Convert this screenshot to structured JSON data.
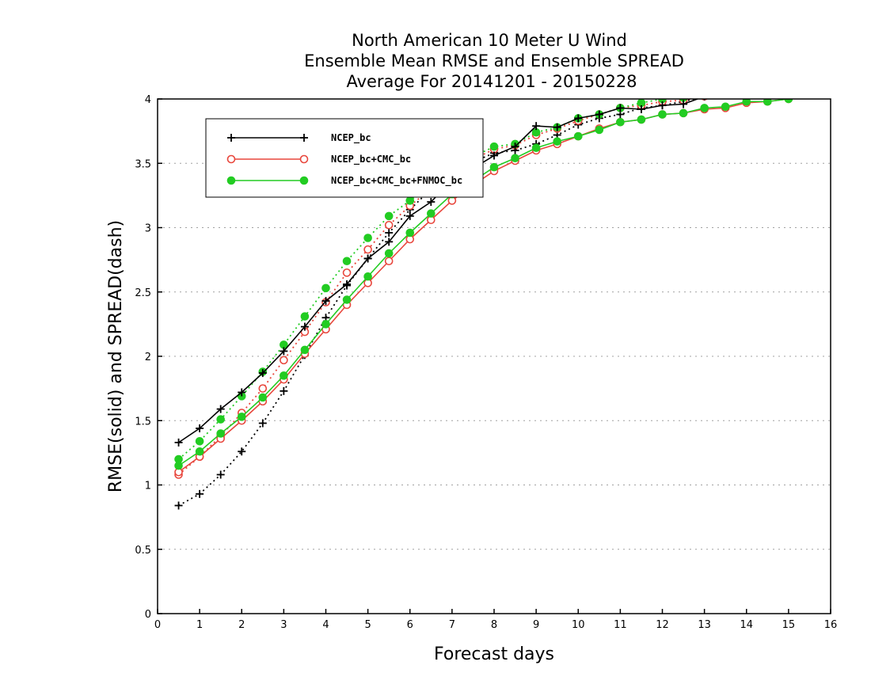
{
  "chart_data": {
    "type": "line",
    "title": [
      "North American 10 Meter U Wind",
      "Ensemble Mean RMSE and Ensemble SPREAD",
      "Average For 20141201 - 20150228"
    ],
    "xlabel": "Forecast days",
    "ylabel": "RMSE(solid) and SPREAD(dash)",
    "xlim": [
      0,
      16
    ],
    "ylim": [
      0,
      4
    ],
    "xticks": [
      "0",
      "1",
      "2",
      "3",
      "4",
      "5",
      "6",
      "7",
      "8",
      "9",
      "10",
      "11",
      "12",
      "13",
      "14",
      "15",
      "16"
    ],
    "yticks": [
      "0",
      "0.5",
      "1",
      "1.5",
      "2",
      "2.5",
      "3",
      "3.5",
      "4"
    ],
    "grid": "horizontal dotted",
    "legend_position": "top-left",
    "series": [
      {
        "name": "NCEP_bc",
        "metric": "RMSE",
        "line_style": "solid",
        "color": "#000000",
        "marker": "plus",
        "x": [
          0.5,
          1,
          1.5,
          2,
          2.5,
          3,
          3.5,
          4,
          4.5,
          5,
          5.5,
          6,
          6.5,
          7,
          7.5,
          8,
          8.5,
          9,
          9.5,
          10,
          10.5,
          11,
          11.5,
          12,
          12.5,
          13,
          13.5,
          14,
          14.5,
          15
        ],
        "y": [
          1.33,
          1.44,
          1.59,
          1.72,
          1.87,
          2.04,
          2.23,
          2.43,
          2.56,
          2.76,
          2.89,
          3.09,
          3.2,
          3.37,
          3.46,
          3.56,
          3.63,
          3.79,
          3.78,
          3.85,
          3.88,
          3.93,
          3.92,
          3.95,
          3.96,
          4.02,
          4.03,
          4.06,
          4.07,
          4.1
        ]
      },
      {
        "name": "NCEP_bc+CMC_bc",
        "metric": "RMSE",
        "line_style": "solid",
        "color": "#e8463c",
        "marker": "open-circle",
        "x": [
          0.5,
          1,
          1.5,
          2,
          2.5,
          3,
          3.5,
          4,
          4.5,
          5,
          5.5,
          6,
          6.5,
          7,
          7.5,
          8,
          8.5,
          9,
          9.5,
          10,
          10.5,
          11,
          11.5,
          12,
          12.5,
          13,
          13.5,
          14,
          14.5,
          15
        ],
        "y": [
          1.1,
          1.22,
          1.36,
          1.5,
          1.65,
          1.82,
          2.02,
          2.21,
          2.4,
          2.57,
          2.74,
          2.91,
          3.06,
          3.21,
          3.33,
          3.44,
          3.52,
          3.6,
          3.65,
          3.71,
          3.77,
          3.82,
          3.84,
          3.88,
          3.89,
          3.92,
          3.93,
          3.97,
          3.98,
          4.0
        ]
      },
      {
        "name": "NCEP_bc+CMC_bc+FNMOC_bc",
        "metric": "RMSE",
        "line_style": "solid",
        "color": "#22cc22",
        "marker": "filled-circle",
        "x": [
          0.5,
          1,
          1.5,
          2,
          2.5,
          3,
          3.5,
          4,
          4.5,
          5,
          5.5,
          6,
          6.5,
          7,
          7.5,
          8,
          8.5,
          9,
          9.5,
          10,
          10.5,
          11,
          11.5,
          12,
          12.5,
          13,
          13.5,
          14,
          14.5,
          15
        ],
        "y": [
          1.15,
          1.26,
          1.4,
          1.53,
          1.68,
          1.85,
          2.05,
          2.25,
          2.44,
          2.62,
          2.8,
          2.96,
          3.11,
          3.26,
          3.36,
          3.47,
          3.54,
          3.62,
          3.67,
          3.71,
          3.76,
          3.82,
          3.84,
          3.88,
          3.89,
          3.93,
          3.94,
          3.98,
          3.98,
          4.0
        ]
      },
      {
        "name": "NCEP_bc",
        "metric": "SPREAD",
        "line_style": "dotted",
        "color": "#000000",
        "marker": "plus",
        "x": [
          0.5,
          1,
          1.5,
          2,
          2.5,
          3,
          3.5,
          4,
          4.5,
          5,
          5.5,
          6,
          6.5,
          7,
          7.5,
          8,
          8.5,
          9,
          9.5,
          10,
          10.5,
          11,
          11.5,
          12,
          12.5,
          13,
          13.5,
          14,
          14.5,
          15
        ],
        "y": [
          0.84,
          0.93,
          1.08,
          1.26,
          1.48,
          1.73,
          2.01,
          2.3,
          2.55,
          2.76,
          2.96,
          3.14,
          3.3,
          3.43,
          3.51,
          3.58,
          3.6,
          3.65,
          3.72,
          3.8,
          3.85,
          3.88,
          3.93,
          3.95,
          3.98,
          4.02,
          4.04,
          4.06,
          4.08,
          4.1
        ]
      },
      {
        "name": "NCEP_bc+CMC_bc",
        "metric": "SPREAD",
        "line_style": "dotted",
        "color": "#e8463c",
        "marker": "open-circle",
        "x": [
          0.5,
          1,
          1.5,
          2,
          2.5,
          3,
          3.5,
          4,
          4.5,
          5,
          5.5,
          6,
          6.5,
          7,
          7.5,
          8,
          8.5,
          9,
          9.5,
          10,
          10.5,
          11,
          11.5,
          12,
          12.5,
          13,
          13.5,
          14,
          14.5,
          15
        ],
        "y": [
          1.08,
          1.22,
          1.38,
          1.56,
          1.75,
          1.97,
          2.19,
          2.42,
          2.65,
          2.83,
          3.02,
          3.17,
          3.3,
          3.45,
          3.53,
          3.61,
          3.64,
          3.72,
          3.77,
          3.83,
          3.88,
          3.93,
          3.95,
          3.98,
          3.99,
          4.02,
          4.04,
          4.06,
          4.08,
          4.1
        ]
      },
      {
        "name": "NCEP_bc+CMC_bc+FNMOC_bc",
        "metric": "SPREAD",
        "line_style": "dotted",
        "color": "#22cc22",
        "marker": "filled-circle",
        "x": [
          0.5,
          1,
          1.5,
          2,
          2.5,
          3,
          3.5,
          4,
          4.5,
          5,
          5.5,
          6,
          6.5,
          7,
          7.5,
          8,
          8.5,
          9,
          9.5,
          10,
          10.5,
          11,
          11.5,
          12,
          12.5,
          13,
          13.5,
          14,
          14.5,
          15
        ],
        "y": [
          1.2,
          1.34,
          1.51,
          1.69,
          1.88,
          2.09,
          2.31,
          2.53,
          2.74,
          2.92,
          3.09,
          3.21,
          3.33,
          3.46,
          3.55,
          3.63,
          3.65,
          3.74,
          3.78,
          3.85,
          3.88,
          3.93,
          3.97,
          4.0,
          4.01,
          4.03,
          4.05,
          4.07,
          4.09,
          4.1
        ]
      }
    ]
  }
}
